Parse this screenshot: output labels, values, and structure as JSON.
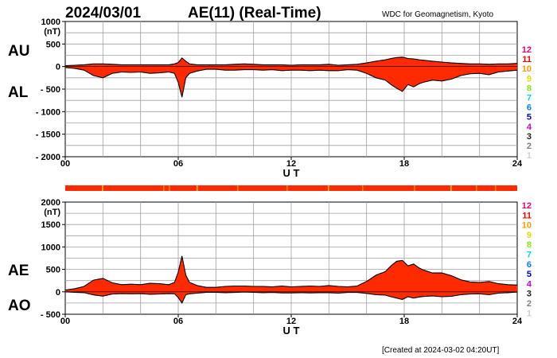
{
  "header": {
    "date": "2024/03/01",
    "title": "AE(11) (Real-Time)",
    "credit": "WDC for Geomagnetism, Kyoto"
  },
  "footer": {
    "created": "[Created at 2024-03-02 04:20UT]"
  },
  "colors": {
    "fill": "#ff2a00",
    "line": "#000000",
    "grid": "#a0a0a0"
  },
  "legend": [
    {
      "label": "12",
      "color": "#e8007a"
    },
    {
      "label": "11",
      "color": "#ff0000"
    },
    {
      "label": "10",
      "color": "#ff9900"
    },
    {
      "label": "9",
      "color": "#e0e000"
    },
    {
      "label": "8",
      "color": "#80ee00"
    },
    {
      "label": "7",
      "color": "#00d8d8"
    },
    {
      "label": "6",
      "color": "#0080ff"
    },
    {
      "label": "5",
      "color": "#0000d0"
    },
    {
      "label": "4",
      "color": "#d000d0"
    },
    {
      "label": "3",
      "color": "#202020"
    },
    {
      "label": "2",
      "color": "#808080"
    },
    {
      "label": "1",
      "color": "#d0d0d0"
    }
  ],
  "chart_data": [
    {
      "type": "area",
      "series_labels": {
        "upper": "AU",
        "lower": "AL"
      },
      "unit": "(nT)",
      "xlabel": "U T",
      "xlim": [
        0,
        24
      ],
      "ylim": [
        -2000,
        1000
      ],
      "xticks": [
        {
          "v": 0,
          "label": "00"
        },
        {
          "v": 6,
          "label": "06"
        },
        {
          "v": 12,
          "label": "12"
        },
        {
          "v": 18,
          "label": "18"
        },
        {
          "v": 24,
          "label": "24"
        }
      ],
      "yticks": [
        {
          "v": 1000,
          "label": "1000"
        },
        {
          "v": 500,
          "label": "500"
        },
        {
          "v": 0,
          "label": "0"
        },
        {
          "v": -500,
          "label": "- 500"
        },
        {
          "v": -1000,
          "label": "- 1000"
        },
        {
          "v": -1500,
          "label": "- 1500"
        },
        {
          "v": -2000,
          "label": "- 2000"
        }
      ],
      "x": [
        0,
        0.5,
        1,
        1.5,
        2,
        2.5,
        3,
        3.5,
        4,
        4.5,
        5,
        5.5,
        5.8,
        6,
        6.2,
        6.4,
        6.6,
        7,
        7.5,
        8,
        8.5,
        9,
        9.5,
        10,
        10.5,
        11,
        11.5,
        12,
        12.5,
        13,
        13.5,
        14,
        14.5,
        15,
        15.5,
        16,
        16.5,
        17,
        17.3,
        17.6,
        17.9,
        18.2,
        18.5,
        18.8,
        19,
        19.5,
        20,
        20.5,
        21,
        21.5,
        22,
        22.5,
        23,
        23.5,
        24
      ],
      "upper": [
        20,
        30,
        40,
        60,
        60,
        50,
        40,
        40,
        40,
        40,
        40,
        40,
        60,
        90,
        190,
        120,
        60,
        40,
        40,
        40,
        40,
        50,
        60,
        50,
        40,
        40,
        40,
        30,
        40,
        40,
        40,
        50,
        30,
        40,
        50,
        80,
        120,
        150,
        180,
        200,
        210,
        180,
        170,
        150,
        140,
        120,
        100,
        80,
        70,
        60,
        60,
        50,
        60,
        60,
        70
      ],
      "lower": [
        -20,
        -40,
        -80,
        -200,
        -250,
        -150,
        -120,
        -130,
        -120,
        -150,
        -140,
        -120,
        -150,
        -350,
        -680,
        -250,
        -150,
        -100,
        -60,
        -60,
        -80,
        -80,
        -70,
        -70,
        -80,
        -70,
        -90,
        -80,
        -80,
        -90,
        -80,
        -90,
        -90,
        -70,
        -80,
        -150,
        -250,
        -300,
        -400,
        -480,
        -550,
        -400,
        -450,
        -380,
        -350,
        -300,
        -320,
        -280,
        -200,
        -160,
        -150,
        -180,
        -120,
        -100,
        -80
      ]
    },
    {
      "type": "area",
      "series_labels": {
        "upper": "AE",
        "lower": "AO"
      },
      "unit": "(nT)",
      "xlabel": "U T",
      "xlim": [
        0,
        24
      ],
      "ylim": [
        -500,
        2000
      ],
      "xticks": [
        {
          "v": 0,
          "label": "00"
        },
        {
          "v": 6,
          "label": "06"
        },
        {
          "v": 12,
          "label": "12"
        },
        {
          "v": 18,
          "label": "18"
        },
        {
          "v": 24,
          "label": "24"
        }
      ],
      "yticks": [
        {
          "v": 2000,
          "label": "2000"
        },
        {
          "v": 1500,
          "label": "1500"
        },
        {
          "v": 1000,
          "label": "1000"
        },
        {
          "v": 500,
          "label": "500"
        },
        {
          "v": 0,
          "label": "0"
        },
        {
          "v": -500,
          "label": "- 500"
        }
      ],
      "x": [
        0,
        0.5,
        1,
        1.5,
        2,
        2.5,
        3,
        3.5,
        4,
        4.5,
        5,
        5.5,
        5.8,
        6,
        6.2,
        6.4,
        6.6,
        7,
        7.5,
        8,
        8.5,
        9,
        9.5,
        10,
        10.5,
        11,
        11.5,
        12,
        12.5,
        13,
        13.5,
        14,
        14.5,
        15,
        15.5,
        16,
        16.5,
        17,
        17.3,
        17.6,
        17.9,
        18.2,
        18.5,
        18.8,
        19,
        19.5,
        20,
        20.5,
        21,
        21.5,
        22,
        22.5,
        23,
        23.5,
        24
      ],
      "upper": [
        40,
        70,
        120,
        260,
        300,
        200,
        160,
        170,
        160,
        190,
        180,
        160,
        210,
        440,
        800,
        370,
        210,
        140,
        100,
        100,
        120,
        130,
        130,
        120,
        120,
        110,
        130,
        110,
        120,
        130,
        120,
        140,
        120,
        110,
        130,
        230,
        370,
        450,
        580,
        680,
        700,
        580,
        620,
        530,
        490,
        420,
        420,
        360,
        270,
        220,
        210,
        230,
        180,
        160,
        150
      ],
      "lower": [
        0,
        -10,
        -20,
        -70,
        -95,
        -50,
        -40,
        -45,
        -40,
        -55,
        -50,
        -40,
        -45,
        -130,
        -250,
        -65,
        -45,
        -30,
        -10,
        -10,
        -20,
        -15,
        -5,
        -10,
        -20,
        -15,
        -25,
        -25,
        -20,
        -25,
        -20,
        -20,
        -30,
        -15,
        -15,
        -35,
        -65,
        -75,
        -110,
        -140,
        -170,
        -110,
        -140,
        -115,
        -105,
        -90,
        -110,
        -100,
        -65,
        -50,
        -45,
        -65,
        -30,
        -20,
        -5
      ]
    }
  ]
}
